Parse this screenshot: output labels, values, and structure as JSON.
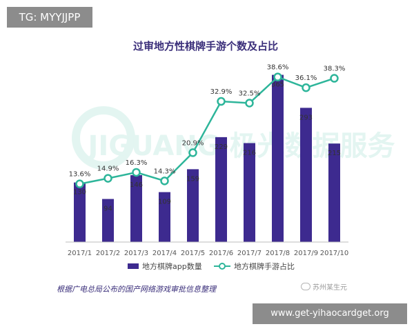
{
  "overlay": {
    "top_tag": "TG: MYYJJPP",
    "bottom_tag": "www.get-yihaocardget.org",
    "source_note": "根据广电总局公布的国产网络游戏审批信息整理",
    "wechat_account": "苏州某生元",
    "watermark": "JIGUANG 极光数据服务"
  },
  "chart_data": {
    "type": "bar",
    "title": "过审地方性棋牌手游个数及占比",
    "categories": [
      "2017/1",
      "2017/2",
      "2017/3",
      "2017/4",
      "2017/5",
      "2017/6",
      "2017/7",
      "2017/8",
      "2017/9",
      "2017/10"
    ],
    "series": [
      {
        "name": "地方棋牌app数量",
        "type": "bar",
        "values": [
          130,
          94,
          146,
          109,
          159,
          229,
          216,
          365,
          293,
          215
        ],
        "labels": [
          "130",
          "94",
          "146",
          "109",
          "159",
          "229",
          "216",
          "365",
          "293",
          "215"
        ]
      },
      {
        "name": "地方棋牌手游占比",
        "type": "line",
        "values": [
          13.6,
          14.9,
          16.3,
          14.3,
          20.9,
          32.9,
          32.5,
          38.6,
          36.1,
          38.3
        ],
        "labels": [
          "13.6%",
          "14.9%",
          "16.3%",
          "14.3%",
          "20.9%",
          "32.9%",
          "32.5%",
          "38.6%",
          "36.1%",
          "38.3%"
        ]
      }
    ],
    "ylim_bar": [
      0,
      420
    ],
    "ylim_line": [
      0,
      45
    ],
    "legend_position": "bottom",
    "grid": false,
    "colors": {
      "bar": "#3d2a8f",
      "line": "#2db59a",
      "title": "#3a2e7a",
      "tick": "#555555"
    }
  }
}
